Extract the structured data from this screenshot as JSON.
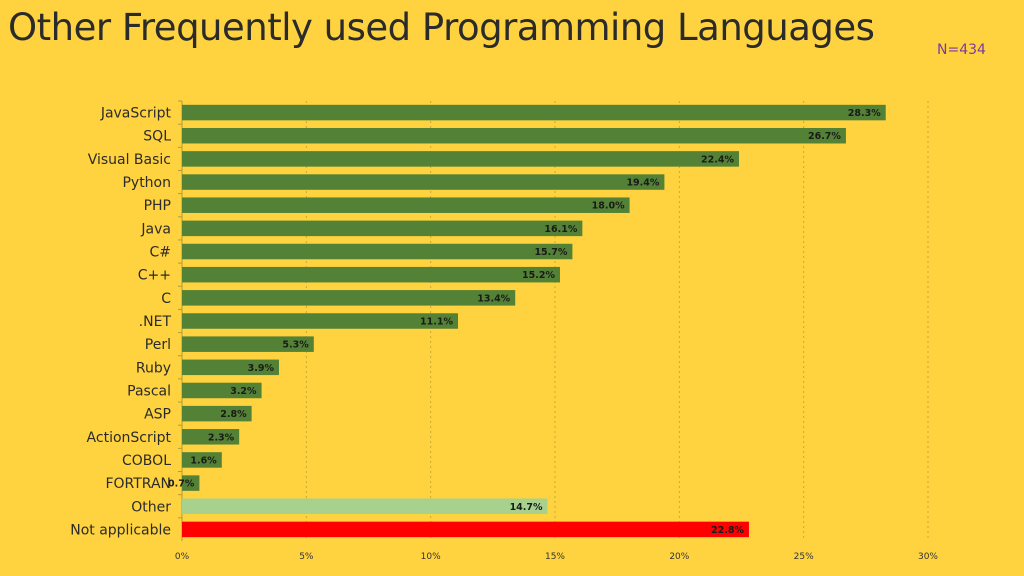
{
  "title": "Other Frequently used Programming Languages",
  "sample_size": "N=434",
  "colors": {
    "background": "#FFD33F",
    "bar_default": "#538135",
    "bar_other": "#A9D18E",
    "bar_not_applicable": "#FF0000",
    "grid": "#C9A834"
  },
  "chart_data": {
    "type": "bar",
    "orientation": "horizontal",
    "title": "Other Frequently used Programming Languages",
    "annotation": "N=434",
    "xlabel": "",
    "ylabel": "",
    "xlim": [
      0,
      30
    ],
    "x_ticks": [
      "0%",
      "5%",
      "10%",
      "15%",
      "20%",
      "25%",
      "30%"
    ],
    "grid": "vertical dashed",
    "legend": "none",
    "categories": [
      "JavaScript",
      "SQL",
      "Visual Basic",
      "Python",
      "PHP",
      "Java",
      "C#",
      "C++",
      "C",
      ".NET",
      "Perl",
      "Ruby",
      "Pascal",
      "ASP",
      "ActionScript",
      "COBOL",
      "FORTRAN",
      "Other",
      "Not applicable"
    ],
    "values": [
      28.3,
      26.7,
      22.4,
      19.4,
      18.0,
      16.1,
      15.7,
      15.2,
      13.4,
      11.1,
      5.3,
      3.9,
      3.2,
      2.8,
      2.3,
      1.6,
      0.7,
      14.7,
      22.8
    ],
    "data_labels": [
      "28.3%",
      "26.7%",
      "22.4%",
      "19.4%",
      "18.0%",
      "16.1%",
      "15.7%",
      "15.2%",
      "13.4%",
      "11.1%",
      "5.3%",
      "3.9%",
      "3.2%",
      "2.8%",
      "2.3%",
      "1.6%",
      "0.7%",
      "14.7%",
      "22.8%"
    ],
    "bar_colors": [
      "#538135",
      "#538135",
      "#538135",
      "#538135",
      "#538135",
      "#538135",
      "#538135",
      "#538135",
      "#538135",
      "#538135",
      "#538135",
      "#538135",
      "#538135",
      "#538135",
      "#538135",
      "#538135",
      "#538135",
      "#A9D18E",
      "#FF0000"
    ]
  }
}
